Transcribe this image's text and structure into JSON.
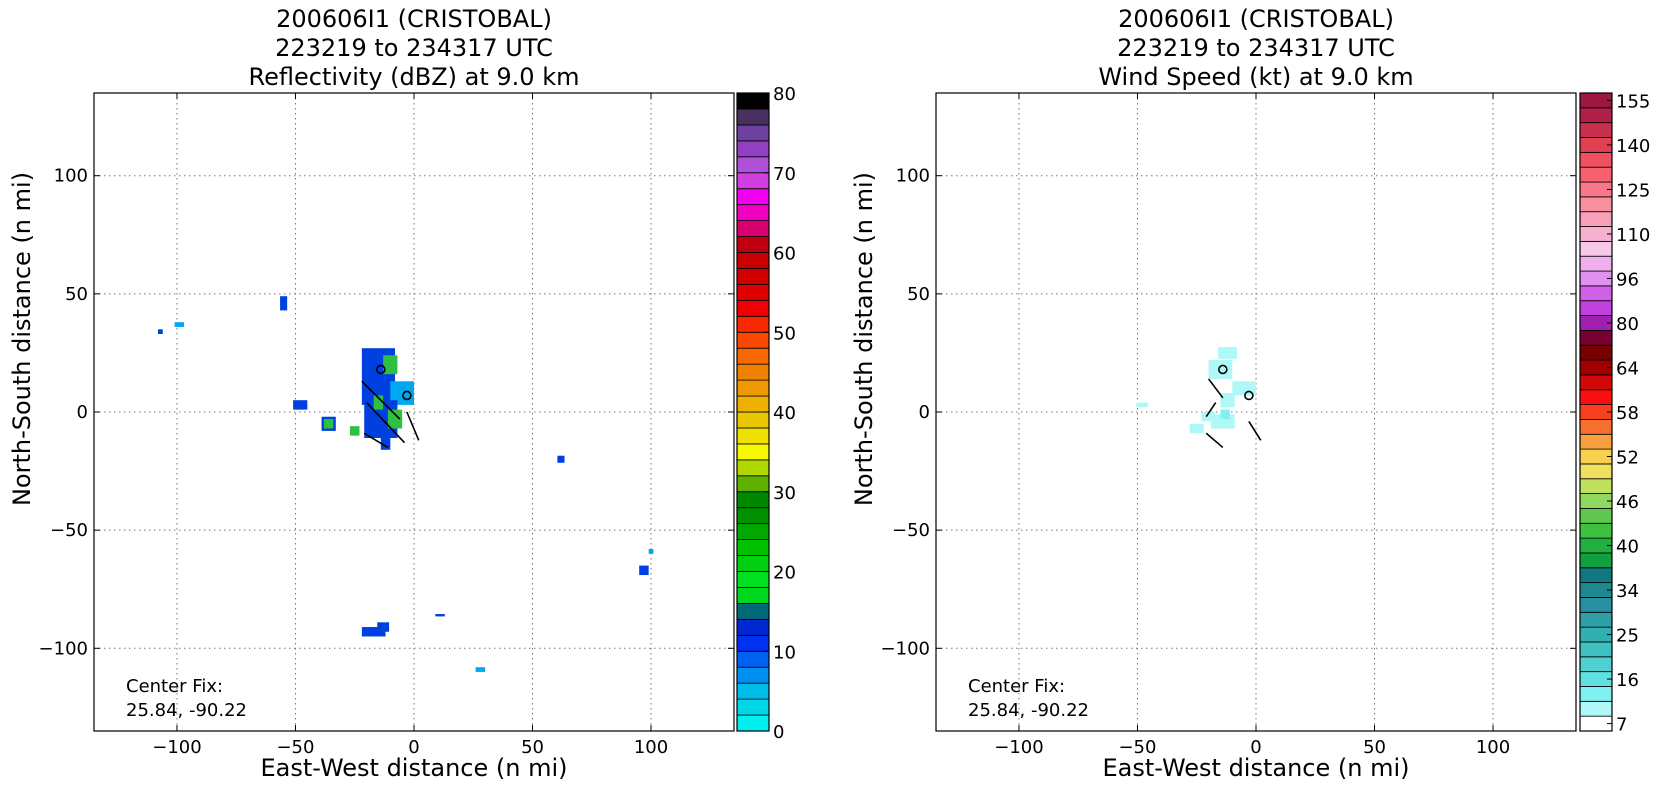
{
  "chart_data": [
    {
      "type": "heatmap",
      "title": [
        "200606I1 (CRISTOBAL)",
        "223219 to 234317 UTC",
        "Reflectivity (dBZ) at 9.0 km"
      ],
      "xlabel": "East-West distance (n mi)",
      "ylabel": "North-South distance (n mi)",
      "xlim": [
        -135,
        135
      ],
      "ylim": [
        -135,
        135
      ],
      "xticks": [
        -100,
        -50,
        0,
        50,
        100
      ],
      "yticks": [
        -100,
        -50,
        0,
        50,
        100
      ],
      "grid": true,
      "annotation": [
        "Center Fix:",
        "25.84, -90.22"
      ],
      "colorbar": {
        "label": "dBZ",
        "min": 0,
        "max": 80,
        "ticks": [
          0,
          10,
          20,
          30,
          40,
          50,
          60,
          70,
          80
        ],
        "colors": [
          "#00f0f0",
          "#00d8e8",
          "#00bce8",
          "#0090f0",
          "#0060f0",
          "#0030f0",
          "#0028d0",
          "#006878",
          "#00d820",
          "#00e020",
          "#00d010",
          "#00c000",
          "#00a800",
          "#009000",
          "#008800",
          "#60b000",
          "#b0d800",
          "#f8f800",
          "#f0e000",
          "#e8c800",
          "#f0b000",
          "#f09800",
          "#f08000",
          "#f86800",
          "#f84800",
          "#f82800",
          "#f00000",
          "#e00000",
          "#d00000",
          "#c80000",
          "#c00010",
          "#d80070",
          "#f000c0",
          "#f000f0",
          "#d040e0",
          "#b050d8",
          "#9040c0",
          "#7040a0",
          "#483060",
          "#000000"
        ]
      },
      "patches": [
        {
          "x": -107,
          "y": 34,
          "w": 2,
          "h": 2,
          "c": "#0040e0"
        },
        {
          "x": -99,
          "y": 37,
          "w": 4,
          "h": 2,
          "c": "#00a8f0"
        },
        {
          "x": -55,
          "y": 46,
          "w": 3,
          "h": 6,
          "c": "#0040e0"
        },
        {
          "x": -48,
          "y": 3,
          "w": 6,
          "h": 4,
          "c": "#0040e0"
        },
        {
          "x": -36,
          "y": -5,
          "w": 6,
          "h": 6,
          "c": "#0040e0"
        },
        {
          "x": -36,
          "y": -5,
          "w": 4,
          "h": 4,
          "c": "#30c040"
        },
        {
          "x": -25,
          "y": -8,
          "w": 4,
          "h": 4,
          "c": "#30c040"
        },
        {
          "x": -15,
          "y": 15,
          "w": 14,
          "h": 24,
          "c": "#0040e0"
        },
        {
          "x": -5,
          "y": 8,
          "w": 10,
          "h": 10,
          "c": "#00a8f0"
        },
        {
          "x": -14,
          "y": -3,
          "w": 14,
          "h": 16,
          "c": "#0040e0"
        },
        {
          "x": -10,
          "y": 20,
          "w": 6,
          "h": 8,
          "c": "#30c040"
        },
        {
          "x": -8,
          "y": -3,
          "w": 6,
          "h": 8,
          "c": "#30c040"
        },
        {
          "x": -15,
          "y": 4,
          "w": 4,
          "h": 6,
          "c": "#30c040"
        },
        {
          "x": -12,
          "y": -13,
          "w": 4,
          "h": 6,
          "c": "#0040e0"
        },
        {
          "x": 62,
          "y": -20,
          "w": 3,
          "h": 3,
          "c": "#0040e0"
        },
        {
          "x": 100,
          "y": -59,
          "w": 2,
          "h": 2,
          "c": "#00a8f0"
        },
        {
          "x": 97,
          "y": -67,
          "w": 4,
          "h": 4,
          "c": "#0040e0"
        },
        {
          "x": 11,
          "y": -86,
          "w": 4,
          "h": 1,
          "c": "#0040e0"
        },
        {
          "x": -17,
          "y": -93,
          "w": 10,
          "h": 4,
          "c": "#0040e0"
        },
        {
          "x": -13,
          "y": -91,
          "w": 5,
          "h": 4,
          "c": "#0040e0"
        },
        {
          "x": 28,
          "y": -109,
          "w": 4,
          "h": 2,
          "c": "#00a8f0"
        }
      ],
      "flight_legs": [
        [
          [
            -22,
            13
          ],
          [
            -6,
            -3
          ]
        ],
        [
          [
            -20,
            4
          ],
          [
            -4,
            -13
          ]
        ],
        [
          [
            -21,
            -9
          ],
          [
            -11,
            -15
          ]
        ],
        [
          [
            -3,
            0
          ],
          [
            2,
            -12
          ]
        ]
      ],
      "centers": [
        [
          -14,
          18
        ],
        [
          -3,
          7
        ]
      ]
    },
    {
      "type": "heatmap",
      "title": [
        "200606I1 (CRISTOBAL)",
        "223219 to 234317 UTC",
        "Wind Speed (kt) at 9.0 km"
      ],
      "xlabel": "East-West distance (n mi)",
      "ylabel": "North-South distance (n mi)",
      "xlim": [
        -135,
        135
      ],
      "ylim": [
        -135,
        135
      ],
      "xticks": [
        -100,
        -50,
        0,
        50,
        100
      ],
      "yticks": [
        -100,
        -50,
        0,
        50,
        100
      ],
      "grid": true,
      "annotation": [
        "Center Fix:",
        "25.84, -90.22"
      ],
      "colorbar": {
        "label": "kt",
        "ticks": [
          "7",
          "16",
          "25",
          "34",
          "40",
          "46",
          "52",
          "58",
          "64",
          "80",
          "96",
          "110",
          "125",
          "140",
          "155"
        ],
        "tick_bins": [
          0.5,
          3.5,
          6.5,
          9.5,
          12.5,
          15.5,
          18.5,
          21.5,
          24.5,
          27.5,
          30.5,
          33.5,
          36.5,
          39.5,
          42.5
        ],
        "colors": [
          "#ffffff",
          "#b0f8f8",
          "#80f0f0",
          "#60e0e0",
          "#50d0d0",
          "#40c0c0",
          "#30b0b0",
          "#30a0a8",
          "#2890a0",
          "#208890",
          "#107880",
          "#10a040",
          "#20b040",
          "#40c040",
          "#60c850",
          "#90d860",
          "#c0e060",
          "#f0e060",
          "#f8d050",
          "#f8a040",
          "#f87030",
          "#f84020",
          "#f81010",
          "#d00808",
          "#a00000",
          "#780000",
          "#780030",
          "#a020b0",
          "#c040e0",
          "#d060e8",
          "#e090f0",
          "#f0b0f0",
          "#f8c8e8",
          "#f8b0d0",
          "#f8a0b8",
          "#f890a0",
          "#f87888",
          "#f86070",
          "#f05060",
          "#e04050",
          "#c83050",
          "#b02048",
          "#9c1840"
        ]
      },
      "patches": [
        {
          "x": -12,
          "y": 25,
          "w": 8,
          "h": 5,
          "c": "#b0f8f8"
        },
        {
          "x": -15,
          "y": 18,
          "w": 10,
          "h": 8,
          "c": "#b0f8f8"
        },
        {
          "x": -5,
          "y": 10,
          "w": 10,
          "h": 6,
          "c": "#b0f8f8"
        },
        {
          "x": -12,
          "y": 5,
          "w": 6,
          "h": 6,
          "c": "#b0f8f8"
        },
        {
          "x": -48,
          "y": 3,
          "w": 5,
          "h": 2,
          "c": "#b0f8f8"
        },
        {
          "x": -20,
          "y": -2,
          "w": 6,
          "h": 4,
          "c": "#b0f8f8"
        },
        {
          "x": -14,
          "y": -4,
          "w": 10,
          "h": 6,
          "c": "#b0f8f8"
        },
        {
          "x": -25,
          "y": -7,
          "w": 6,
          "h": 4,
          "c": "#b0f8f8"
        },
        {
          "x": -13,
          "y": -1,
          "w": 4,
          "h": 4,
          "c": "#80f0f0"
        }
      ],
      "flight_legs": [
        [
          [
            -20,
            14
          ],
          [
            -14,
            6
          ]
        ],
        [
          [
            -21,
            -2
          ],
          [
            -17,
            4
          ]
        ],
        [
          [
            -21,
            -9
          ],
          [
            -14,
            -15
          ]
        ],
        [
          [
            -3,
            -4
          ],
          [
            2,
            -12
          ]
        ]
      ],
      "centers": [
        [
          -14,
          18
        ],
        [
          -3,
          7
        ]
      ]
    }
  ]
}
